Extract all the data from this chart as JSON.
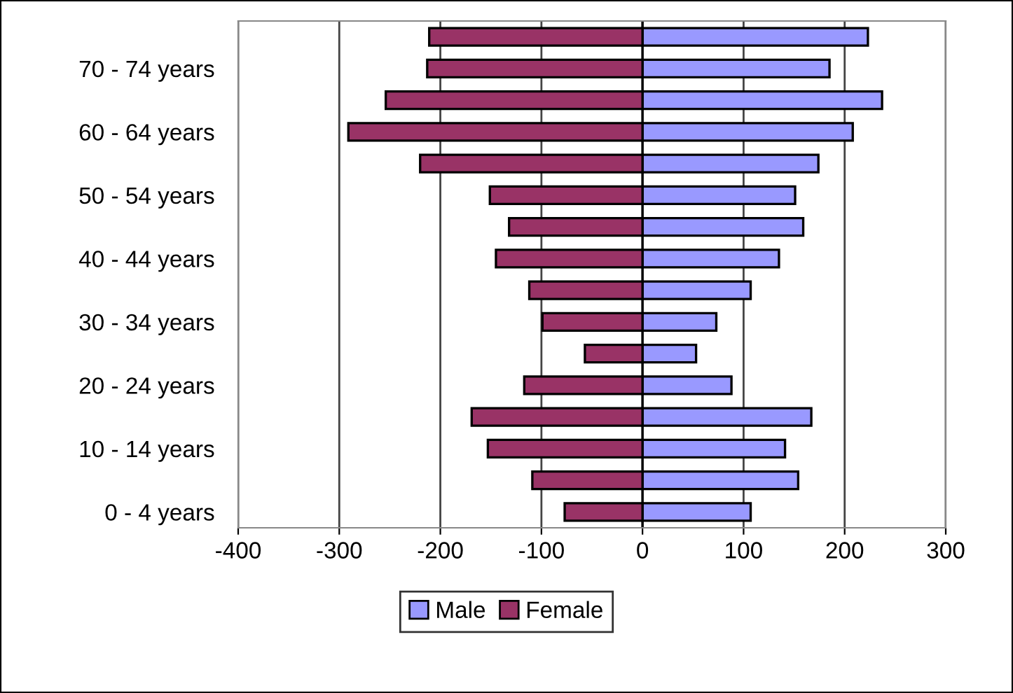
{
  "chart_data": {
    "type": "bar",
    "orientation": "horizontal",
    "stacked": true,
    "categories": [
      null,
      "70 - 74 years",
      null,
      "60 - 64 years",
      null,
      "50 - 54 years",
      null,
      "40 - 44 years",
      null,
      "30 - 34 years",
      null,
      "20 - 24 years",
      null,
      "10 - 14 years",
      null,
      "0 - 4 years"
    ],
    "series": [
      {
        "name": "Male",
        "color": "#9999ff",
        "values": [
          223,
          185,
          237,
          208,
          174,
          151,
          159,
          135,
          107,
          73,
          53,
          88,
          167,
          141,
          154,
          107
        ]
      },
      {
        "name": "Female",
        "color": "#993366",
        "values": [
          -211,
          -213,
          -254,
          -291,
          -220,
          -151,
          -132,
          -145,
          -112,
          -99,
          -57,
          -117,
          -169,
          -153,
          -109,
          -77
        ]
      }
    ],
    "xlim": [
      -400,
      300
    ],
    "xticks": [
      -400,
      -300,
      -200,
      -100,
      0,
      100,
      200,
      300
    ],
    "grid": "x",
    "legend": "bottom"
  }
}
